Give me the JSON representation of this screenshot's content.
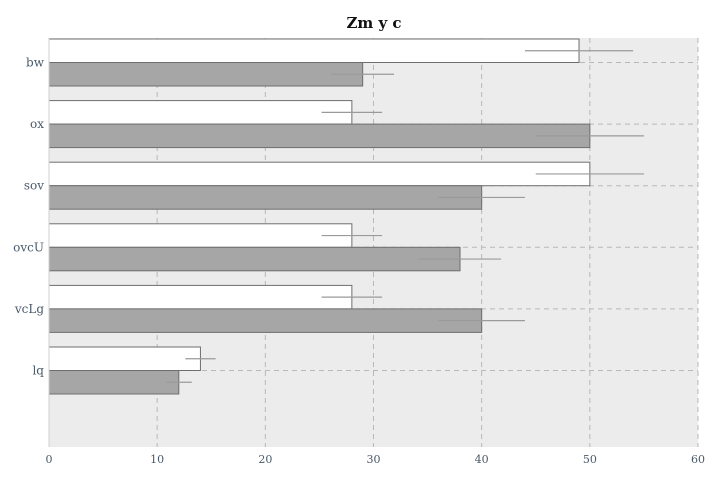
{
  "chart_data": {
    "type": "bar",
    "orientation": "horizontal",
    "title": "Zm y c",
    "xlabel": "",
    "ylabel": "",
    "categories": [
      "bw",
      "ox",
      "sov",
      "ovcU",
      "vcLg",
      "lq"
    ],
    "xlim": [
      0,
      60
    ],
    "xticks": [
      0,
      10,
      20,
      30,
      40,
      50,
      60
    ],
    "grid": true,
    "series": [
      {
        "values": [
          49,
          28,
          50,
          28,
          28,
          14
        ],
        "errors": [
          5,
          2.8,
          5,
          2.8,
          2.8,
          1.4
        ],
        "color": "#ffffff"
      },
      {
        "values": [
          29,
          50,
          40,
          38,
          40,
          12
        ],
        "errors": [
          2.9,
          5,
          4,
          3.8,
          4,
          1.2
        ],
        "color": "#a6a6a6"
      }
    ]
  },
  "colors": {
    "plot_background": "#ececec",
    "grid": "#b8b8b8",
    "bar_stroke": "#6e6e6e",
    "error_bar": "#9a9a9a"
  }
}
